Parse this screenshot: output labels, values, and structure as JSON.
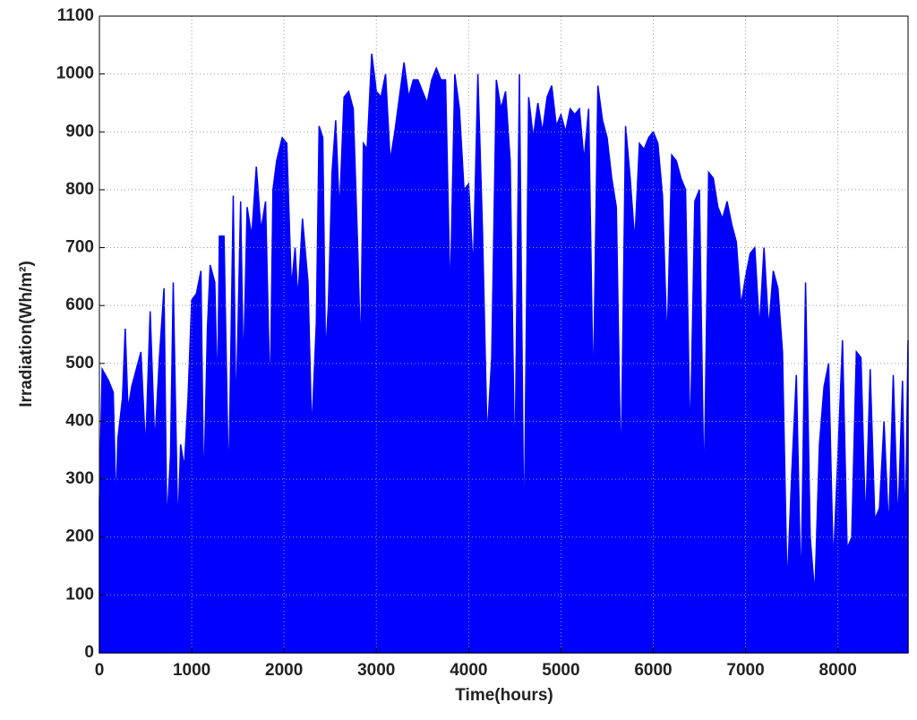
{
  "chart_data": {
    "type": "area",
    "x_label": "Time(hours)",
    "y_label": "Irradiation(Wh/m²)",
    "color": "#0000ff",
    "grid": true,
    "xlim": [
      0,
      8760
    ],
    "ylim": [
      0,
      1100
    ],
    "xticks": [
      0,
      1000,
      2000,
      3000,
      4000,
      5000,
      6000,
      7000,
      8000
    ],
    "yticks": [
      0,
      100,
      200,
      300,
      400,
      500,
      600,
      700,
      800,
      900,
      1000,
      1100
    ],
    "x": [
      0,
      30,
      100,
      150,
      180,
      200,
      250,
      280,
      310,
      350,
      400,
      450,
      500,
      550,
      600,
      650,
      700,
      730,
      770,
      800,
      850,
      880,
      920,
      960,
      1000,
      1050,
      1100,
      1130,
      1170,
      1200,
      1250,
      1280,
      1300,
      1350,
      1400,
      1450,
      1480,
      1530,
      1560,
      1600,
      1650,
      1700,
      1750,
      1800,
      1850,
      1880,
      1920,
      1980,
      2030,
      2080,
      2120,
      2150,
      2200,
      2260,
      2300,
      2350,
      2380,
      2420,
      2450,
      2480,
      2520,
      2560,
      2600,
      2650,
      2700,
      2750,
      2800,
      2830,
      2860,
      2900,
      2950,
      3000,
      3050,
      3100,
      3150,
      3200,
      3250,
      3300,
      3350,
      3400,
      3450,
      3500,
      3550,
      3600,
      3650,
      3700,
      3750,
      3800,
      3850,
      3900,
      3950,
      4000,
      4050,
      4100,
      4150,
      4200,
      4250,
      4300,
      4350,
      4400,
      4450,
      4500,
      4550,
      4600,
      4650,
      4700,
      4750,
      4800,
      4850,
      4900,
      4950,
      5000,
      5050,
      5100,
      5150,
      5200,
      5250,
      5300,
      5350,
      5400,
      5450,
      5500,
      5550,
      5600,
      5650,
      5700,
      5750,
      5800,
      5850,
      5900,
      5950,
      6000,
      6050,
      6100,
      6150,
      6200,
      6250,
      6300,
      6350,
      6400,
      6450,
      6500,
      6550,
      6600,
      6650,
      6700,
      6750,
      6800,
      6850,
      6900,
      6950,
      7000,
      7050,
      7100,
      7150,
      7200,
      7250,
      7300,
      7350,
      7400,
      7450,
      7500,
      7550,
      7600,
      7650,
      7700,
      7750,
      7800,
      7850,
      7900,
      7950,
      8000,
      8050,
      8100,
      8150,
      8200,
      8250,
      8300,
      8350,
      8400,
      8450,
      8500,
      8550,
      8600,
      8650,
      8700,
      8730,
      8760
    ],
    "values": [
      260,
      490,
      470,
      450,
      250,
      370,
      440,
      560,
      420,
      460,
      490,
      520,
      350,
      590,
      360,
      510,
      630,
      220,
      340,
      640,
      210,
      360,
      320,
      440,
      610,
      620,
      660,
      270,
      560,
      670,
      640,
      440,
      720,
      720,
      280,
      790,
      400,
      780,
      480,
      770,
      720,
      840,
      730,
      780,
      430,
      800,
      850,
      890,
      880,
      630,
      700,
      610,
      750,
      640,
      380,
      570,
      910,
      890,
      510,
      600,
      830,
      920,
      760,
      960,
      970,
      940,
      690,
      510,
      880,
      870,
      1035,
      970,
      960,
      1000,
      850,
      900,
      960,
      1020,
      960,
      990,
      990,
      970,
      950,
      990,
      1010,
      990,
      990,
      610,
      1000,
      940,
      800,
      810,
      660,
      1000,
      730,
      370,
      510,
      990,
      940,
      970,
      850,
      300,
      1000,
      170,
      960,
      890,
      950,
      900,
      960,
      980,
      910,
      930,
      900,
      940,
      930,
      940,
      850,
      940,
      440,
      980,
      920,
      890,
      820,
      770,
      300,
      910,
      820,
      710,
      880,
      870,
      890,
      900,
      880,
      790,
      530,
      860,
      850,
      820,
      800,
      360,
      780,
      800,
      270,
      830,
      820,
      770,
      750,
      780,
      740,
      710,
      600,
      650,
      690,
      700,
      560,
      700,
      560,
      660,
      630,
      520,
      110,
      310,
      480,
      100,
      640,
      200,
      100,
      360,
      460,
      500,
      150,
      340,
      540,
      180,
      200,
      520,
      510,
      220,
      490,
      230,
      250,
      400,
      210,
      480,
      220,
      470,
      200,
      540
    ]
  }
}
